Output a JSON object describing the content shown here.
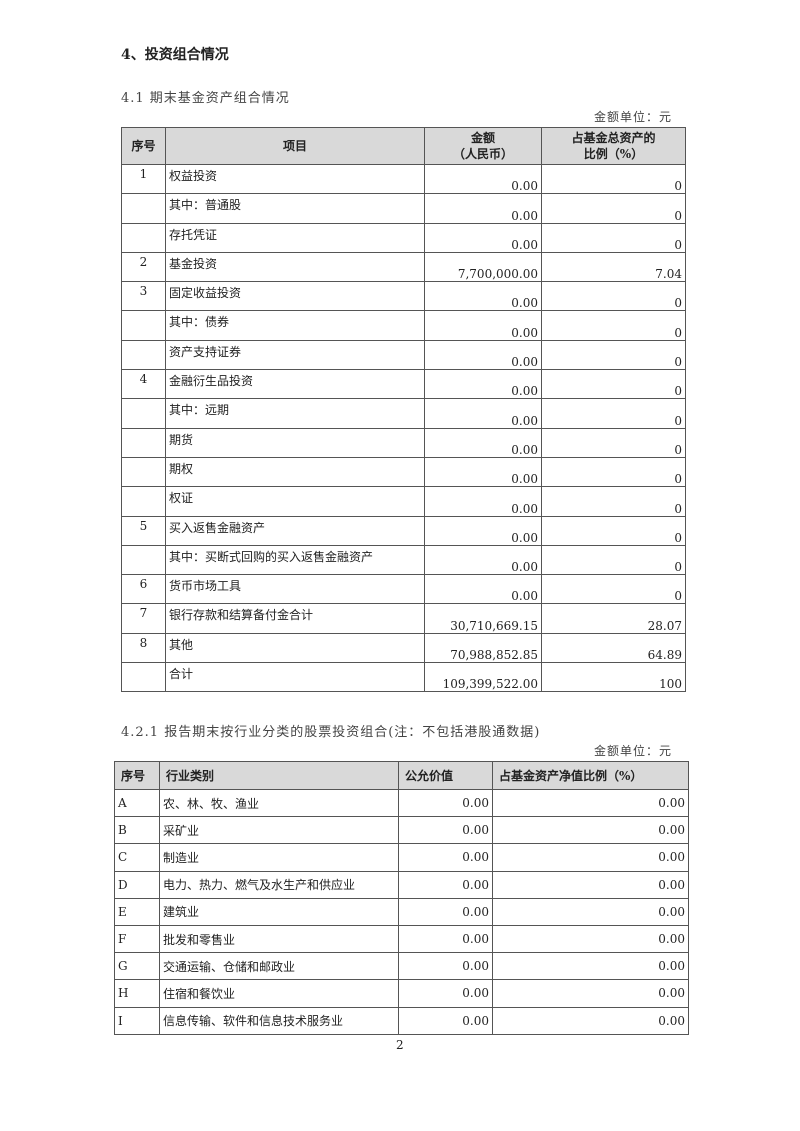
{
  "heading": "4、投资组合情况",
  "section1": {
    "title": "4.1 期末基金资产组合情况",
    "unit": "金额单位：元",
    "headers": [
      "序号",
      "项目",
      "金额（人民币）",
      "占基金总资产的比例（%）"
    ],
    "header_amount": [
      "金额",
      "（人民币）"
    ],
    "header_ratio": [
      "占基金总资产的",
      "比例（%）"
    ],
    "rows": [
      [
        "1",
        "权益投资",
        "0.00",
        "0"
      ],
      [
        "",
        "其中：普通股",
        "0.00",
        "0"
      ],
      [
        "",
        "存托凭证",
        "0.00",
        "0"
      ],
      [
        "2",
        "基金投资",
        "7,700,000.00",
        "7.04"
      ],
      [
        "3",
        "固定收益投资",
        "0.00",
        "0"
      ],
      [
        "",
        "其中：债券",
        "0.00",
        "0"
      ],
      [
        "",
        "资产支持证券",
        "0.00",
        "0"
      ],
      [
        "4",
        "金融衍生品投资",
        "0.00",
        "0"
      ],
      [
        "",
        "其中：远期",
        "0.00",
        "0"
      ],
      [
        "",
        "期货",
        "0.00",
        "0"
      ],
      [
        "",
        "期权",
        "0.00",
        "0"
      ],
      [
        "",
        "权证",
        "0.00",
        "0"
      ],
      [
        "5",
        "买入返售金融资产",
        "0.00",
        "0"
      ],
      [
        "",
        "其中：买断式回购的买入返售金融资产",
        "0.00",
        "0"
      ],
      [
        "6",
        "货币市场工具",
        "0.00",
        "0"
      ],
      [
        "7",
        "银行存款和结算备付金合计",
        "30,710,669.15",
        "28.07"
      ],
      [
        "8",
        "其他",
        "70,988,852.85",
        "64.89"
      ],
      [
        "",
        "合计",
        "109,399,522.00",
        "100"
      ]
    ]
  },
  "section2": {
    "title": "4.2.1 报告期末按行业分类的股票投资组合(注：不包括港股通数据)",
    "unit": "金额单位：元",
    "headers": [
      "序号",
      "行业类别",
      "公允价值",
      "占基金资产净值比例（%）"
    ],
    "rows": [
      [
        "A",
        "农、林、牧、渔业",
        "0.00",
        "0.00"
      ],
      [
        "B",
        "采矿业",
        "0.00",
        "0.00"
      ],
      [
        "C",
        "制造业",
        "0.00",
        "0.00"
      ],
      [
        "D",
        "电力、热力、燃气及水生产和供应业",
        "0.00",
        "0.00"
      ],
      [
        "E",
        "建筑业",
        "0.00",
        "0.00"
      ],
      [
        "F",
        "批发和零售业",
        "0.00",
        "0.00"
      ],
      [
        "G",
        "交通运输、仓储和邮政业",
        "0.00",
        "0.00"
      ],
      [
        "H",
        "住宿和餐饮业",
        "0.00",
        "0.00"
      ],
      [
        "I",
        "信息传输、软件和信息技术服务业",
        "0.00",
        "0.00"
      ]
    ]
  },
  "page_number": "2"
}
